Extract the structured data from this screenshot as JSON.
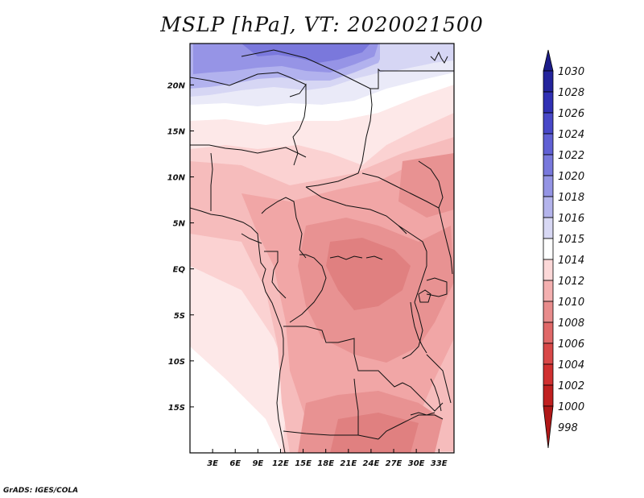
{
  "title": "MSLP [hPa], VT: 2020021500",
  "footer": "GrADS: IGES/COLA",
  "map": {
    "region": "Central Africa",
    "x_ticks": [
      "3E",
      "6E",
      "9E",
      "12E",
      "15E",
      "18E",
      "21E",
      "24E",
      "27E",
      "30E",
      "33E"
    ],
    "y_ticks": [
      "20N",
      "15N",
      "10N",
      "5N",
      "EQ",
      "5S",
      "10S",
      "15S"
    ],
    "lon_values": [
      3,
      6,
      9,
      12,
      15,
      18,
      21,
      24,
      27,
      30,
      33
    ],
    "lat_values": [
      20,
      15,
      10,
      5,
      0,
      -5,
      -10,
      -15
    ],
    "lon_range": [
      0,
      35
    ],
    "lat_range": [
      -20,
      24.5
    ]
  },
  "colorbar": {
    "levels": [
      "1030",
      "1028",
      "1026",
      "1024",
      "1022",
      "1020",
      "1018",
      "1016",
      "1015",
      "1014",
      "1012",
      "1010",
      "1008",
      "1006",
      "1004",
      "1002",
      "1000",
      "998"
    ],
    "colors": [
      "#1c1c8a",
      "#24249c",
      "#3030b4",
      "#4848c8",
      "#6060d4",
      "#7878dc",
      "#9494e4",
      "#b4b4ec",
      "#d8d8f4",
      "#ffffff",
      "#fcd8d8",
      "#f4b0b0",
      "#e88c8c",
      "#e06868",
      "#d84848",
      "#d03030",
      "#c02020",
      "#b01818"
    ]
  },
  "field_colors": {
    "p1022": "#7a78dc",
    "p1020": "#9694e6",
    "p1018": "#b2b2ee",
    "p1016": "#d6d6f4",
    "p1015": "#eaeaf8",
    "p1014": "#ffffff",
    "p1013": "#fde8e8",
    "p1012": "#fbd2d2",
    "p1011": "#f6bcbc",
    "p1010": "#f1a6a6",
    "p1009": "#e89292",
    "p1008": "#e08080"
  }
}
